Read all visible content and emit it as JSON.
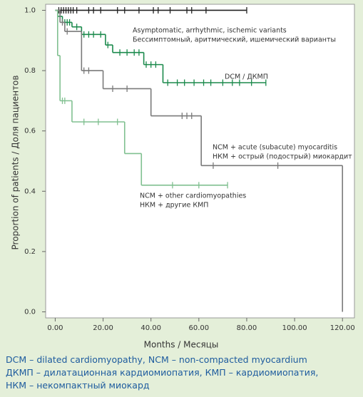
{
  "chart_data": {
    "type": "survival",
    "x_label": "Months / Месяцы",
    "y_label": "Proportion of patients / Доля пациентов",
    "xlim": [
      -4,
      125
    ],
    "ylim": [
      -0.02,
      1.02
    ],
    "xticks": [
      {
        "value": 0,
        "label": "0.00"
      },
      {
        "value": 20,
        "label": "20.00"
      },
      {
        "value": 40,
        "label": "40.00"
      },
      {
        "value": 60,
        "label": "60.00"
      },
      {
        "value": 80,
        "label": "80.00"
      },
      {
        "value": 100,
        "label": "100.00"
      },
      {
        "value": 120,
        "label": "120.00"
      }
    ],
    "yticks": [
      {
        "value": 0,
        "label": "0.0"
      },
      {
        "value": 0.2,
        "label": "0.2"
      },
      {
        "value": 0.4,
        "label": "0.4"
      },
      {
        "value": 0.6,
        "label": "0.6"
      },
      {
        "value": 0.8,
        "label": "0.8"
      },
      {
        "value": 1,
        "label": "1.0"
      }
    ],
    "series": [
      {
        "color": "#222222",
        "x": [
          0,
          80
        ],
        "values": [
          1,
          1
        ],
        "censored": [
          1.5,
          2.5,
          3.5,
          4.5,
          5.5,
          6.5,
          7.5,
          9,
          14,
          16,
          19,
          26,
          29,
          35,
          41,
          43,
          48,
          55,
          57,
          63,
          80
        ]
      },
      {
        "color": "#1b8a4c",
        "x": [
          0,
          1,
          3,
          7,
          11,
          21,
          24,
          37,
          45,
          88
        ],
        "values": [
          1,
          0.98,
          0.96,
          0.945,
          0.92,
          0.885,
          0.86,
          0.82,
          0.76,
          0.76
        ],
        "censored": [
          2,
          4,
          5,
          6,
          9,
          12,
          14,
          16,
          19,
          22,
          27,
          30,
          33,
          35,
          38,
          40,
          42,
          47,
          51,
          54,
          58,
          62,
          65,
          70,
          74,
          77,
          82,
          88
        ]
      },
      {
        "color": "#7a7a7a",
        "x": [
          0,
          2,
          4,
          11,
          20,
          40,
          61,
          120
        ],
        "values": [
          1,
          0.96,
          0.93,
          0.8,
          0.74,
          0.65,
          0.485,
          0
        ],
        "censored": [
          3,
          5,
          12,
          14,
          24,
          30,
          53,
          55,
          57,
          66,
          93
        ]
      },
      {
        "color": "#80c090",
        "x": [
          0,
          1,
          2,
          7,
          29,
          36,
          72
        ],
        "values": [
          1,
          0.85,
          0.7,
          0.63,
          0.525,
          0.42,
          0.42
        ],
        "censored": [
          3,
          4,
          12,
          18,
          26,
          49,
          60,
          72
        ]
      }
    ],
    "annotations": [
      "Asymptomatic, arrhythmic, ischemic variants",
      "Бессимптомный, аритмический, ишемический варианты",
      "DCM / ДКМП",
      "NCM + acute (subacute) myocarditis",
      "НКМ + острый (подострый) миокардит",
      "NCM + other cardiomyopathies",
      "НКМ + другие КМП"
    ],
    "caption": [
      "DCM – dilated cardiomyopathy, NCM – non-compacted myocardium",
      "ДКМП – дилатационная кардиомиопатия, КМП – кардиомиопатия,",
      "НКМ – некомпактный миокард"
    ]
  }
}
